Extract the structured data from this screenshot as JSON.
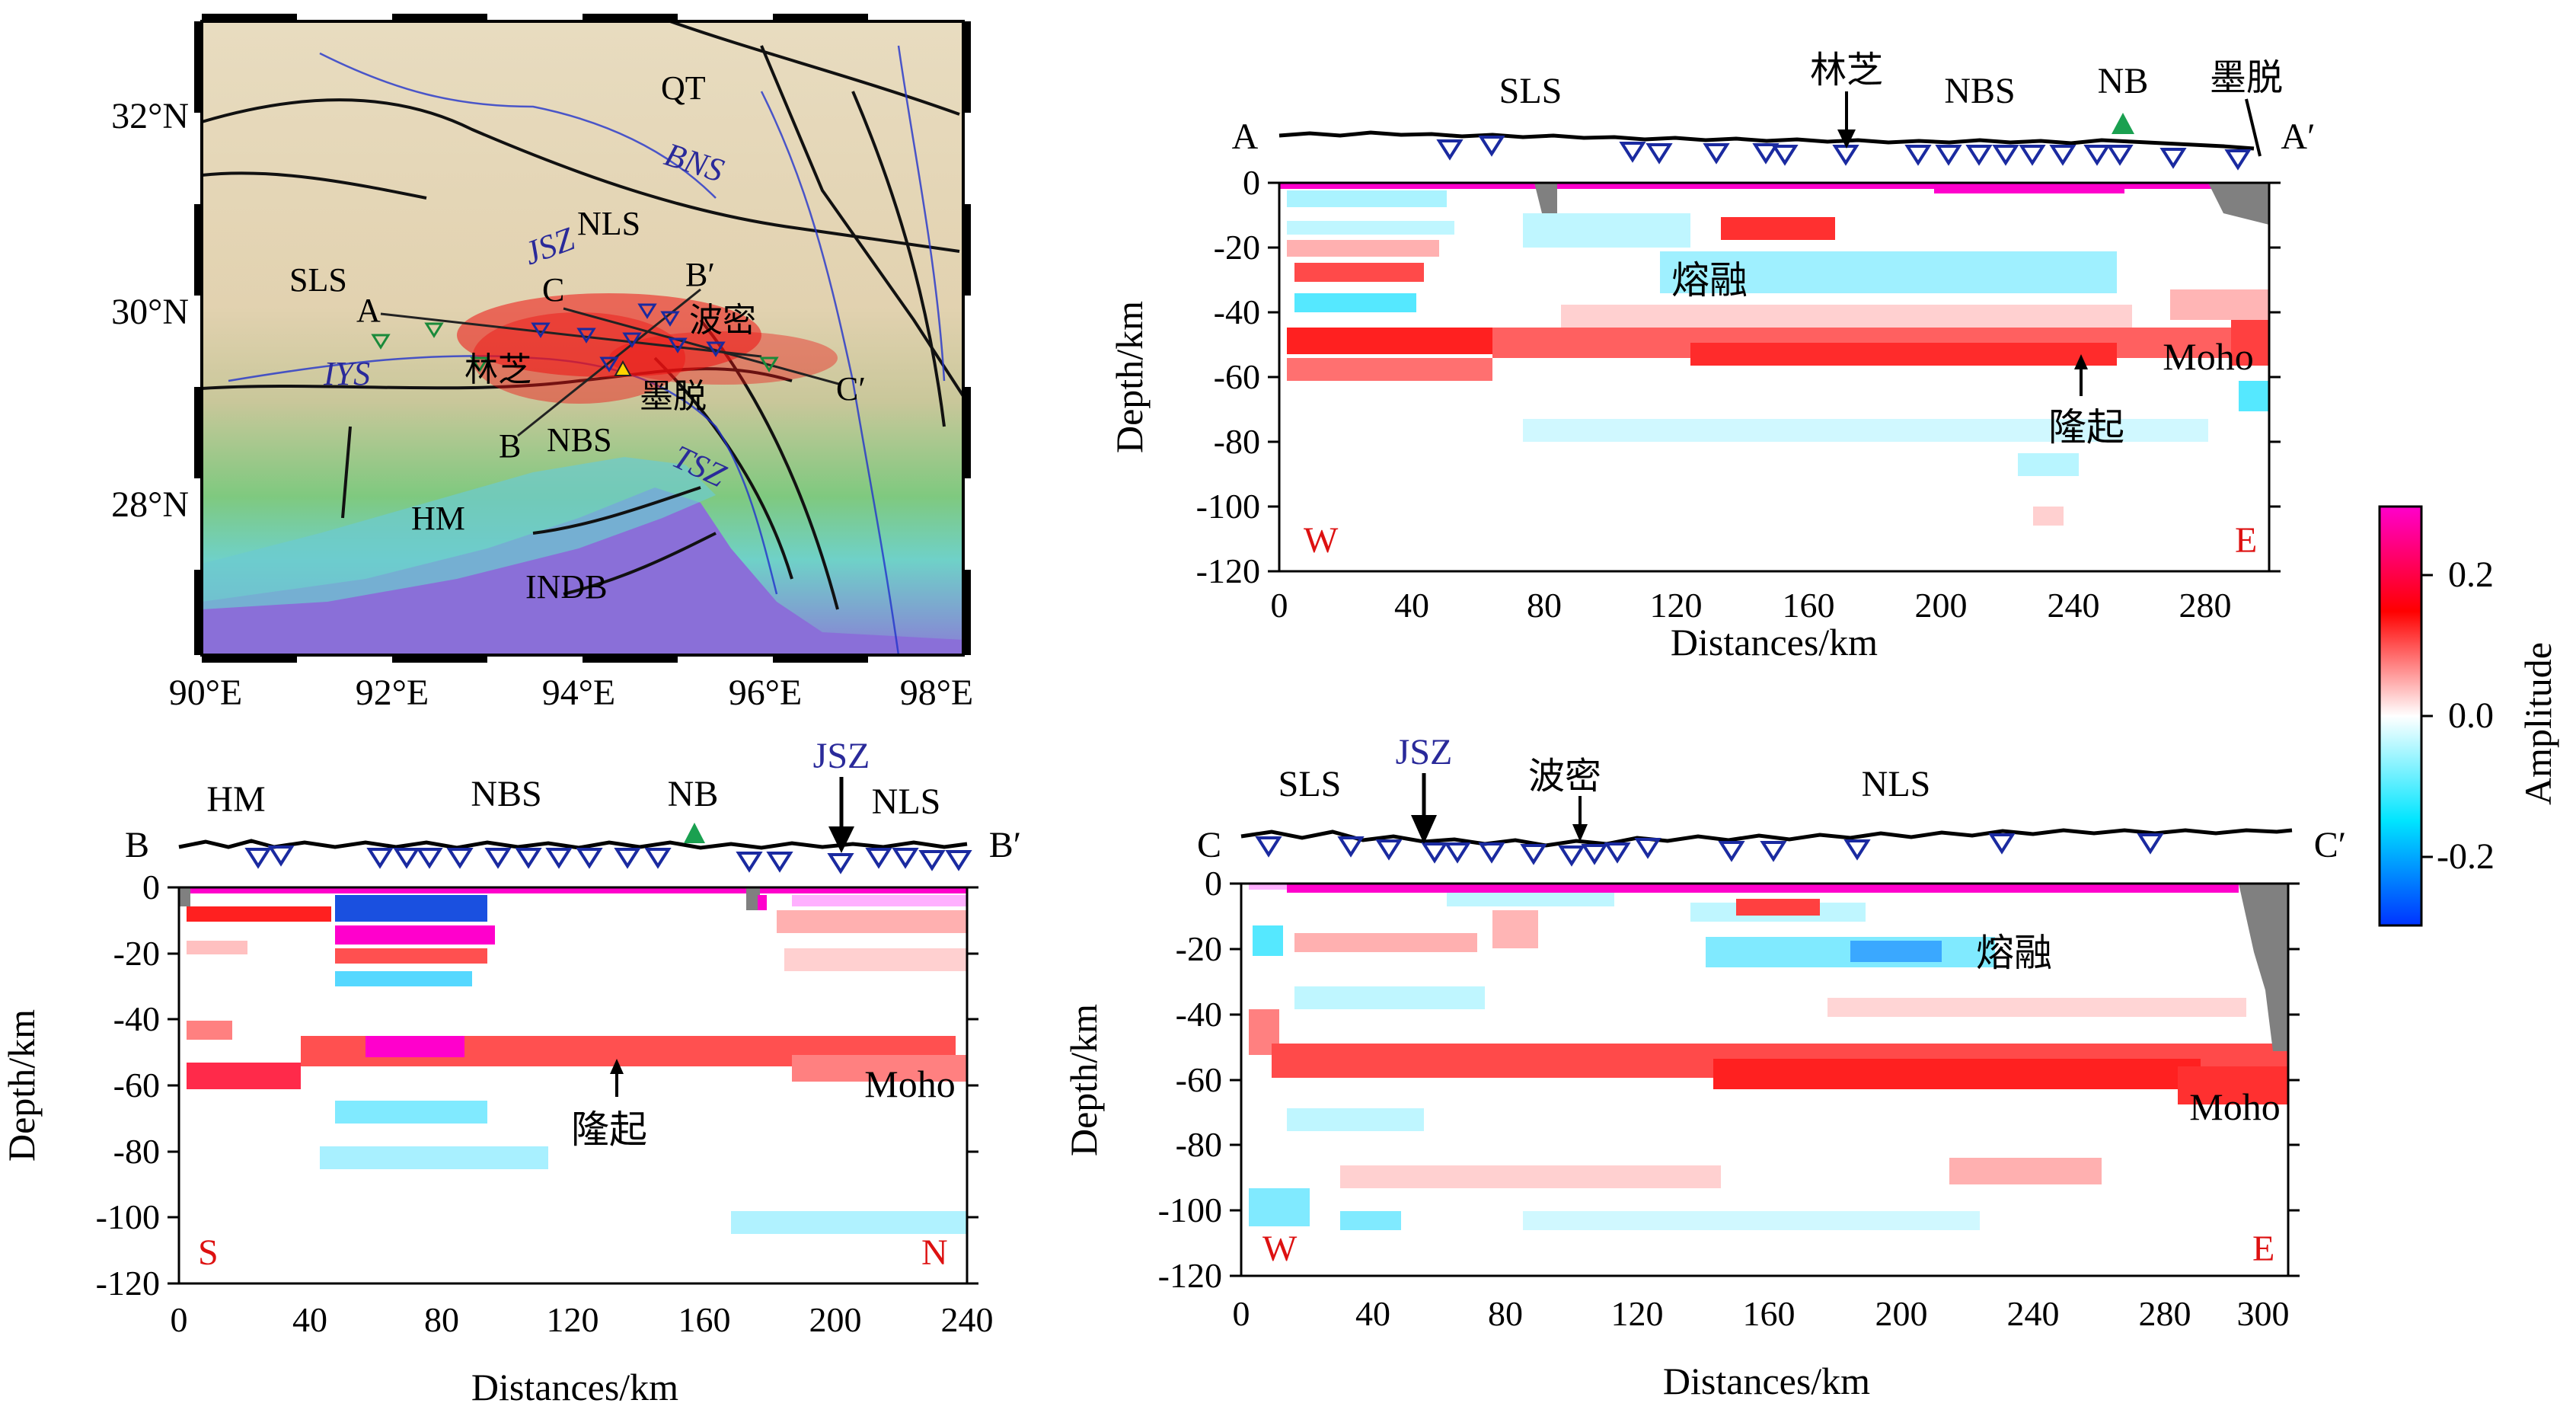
{
  "map": {
    "lat_ticks": [
      "32°N",
      "30°N",
      "28°N"
    ],
    "lon_ticks": [
      "90°E",
      "92°E",
      "94°E",
      "96°E",
      "98°E"
    ],
    "labels": {
      "qt": "QT",
      "bns": "BNS",
      "nls": "NLS",
      "jsz": "JSZ",
      "sls": "SLS",
      "iys": "IYS",
      "nbs": "NBS",
      "tsz": "TSZ",
      "hm": "HM",
      "indb": "INDB",
      "bomi": "波密",
      "linzhi": "林芝",
      "medog": "墨脱",
      "a": "A",
      "b": "B",
      "c": "C",
      "b_prime": "B′",
      "c_prime": "C′"
    }
  },
  "colorbar": {
    "title": "Amplitude",
    "ticks": [
      "0.2",
      "0.0",
      "-0.2"
    ],
    "colors": [
      "#ff00cc",
      "#ff0000",
      "#ffffff",
      "#00e5ff",
      "#0033ff"
    ]
  },
  "profiles": {
    "aa": {
      "start": "A",
      "end": "A′",
      "left_dir": "W",
      "right_dir": "E",
      "top_labels": [
        "SLS",
        "林芝",
        "NBS",
        "NB",
        "墨脱"
      ],
      "annotations": {
        "melt": "熔融",
        "moho": "Moho",
        "uplift": "隆起"
      },
      "x_ticks": [
        "0",
        "40",
        "80",
        "120",
        "160",
        "200",
        "240",
        "280"
      ],
      "y_ticks": [
        "0",
        "-20",
        "-40",
        "-60",
        "-80",
        "-100",
        "-120"
      ],
      "xlabel": "Distances/km",
      "ylabel": "Depth/km"
    },
    "bb": {
      "start": "B",
      "end": "B′",
      "left_dir": "S",
      "right_dir": "N",
      "top_labels": [
        "HM",
        "NBS",
        "NB",
        "JSZ",
        "NLS"
      ],
      "annotations": {
        "moho": "Moho",
        "uplift": "隆起"
      },
      "x_ticks": [
        "0",
        "40",
        "80",
        "120",
        "160",
        "200",
        "240"
      ],
      "y_ticks": [
        "0",
        "-20",
        "-40",
        "-60",
        "-80",
        "-100",
        "-120"
      ],
      "xlabel": "Distances/km",
      "ylabel": "Depth/km"
    },
    "cc": {
      "start": "C",
      "end": "C′",
      "left_dir": "W",
      "right_dir": "E",
      "top_labels": [
        "SLS",
        "JSZ",
        "波密",
        "NLS"
      ],
      "annotations": {
        "melt": "熔融",
        "moho": "Moho"
      },
      "x_ticks": [
        "0",
        "40",
        "80",
        "120",
        "160",
        "200",
        "240",
        "280",
        "300"
      ],
      "y_ticks": [
        "0",
        "-20",
        "-40",
        "-60",
        "-80",
        "-100",
        "-120"
      ],
      "xlabel": "Distances/km",
      "ylabel": "Depth/km"
    }
  }
}
